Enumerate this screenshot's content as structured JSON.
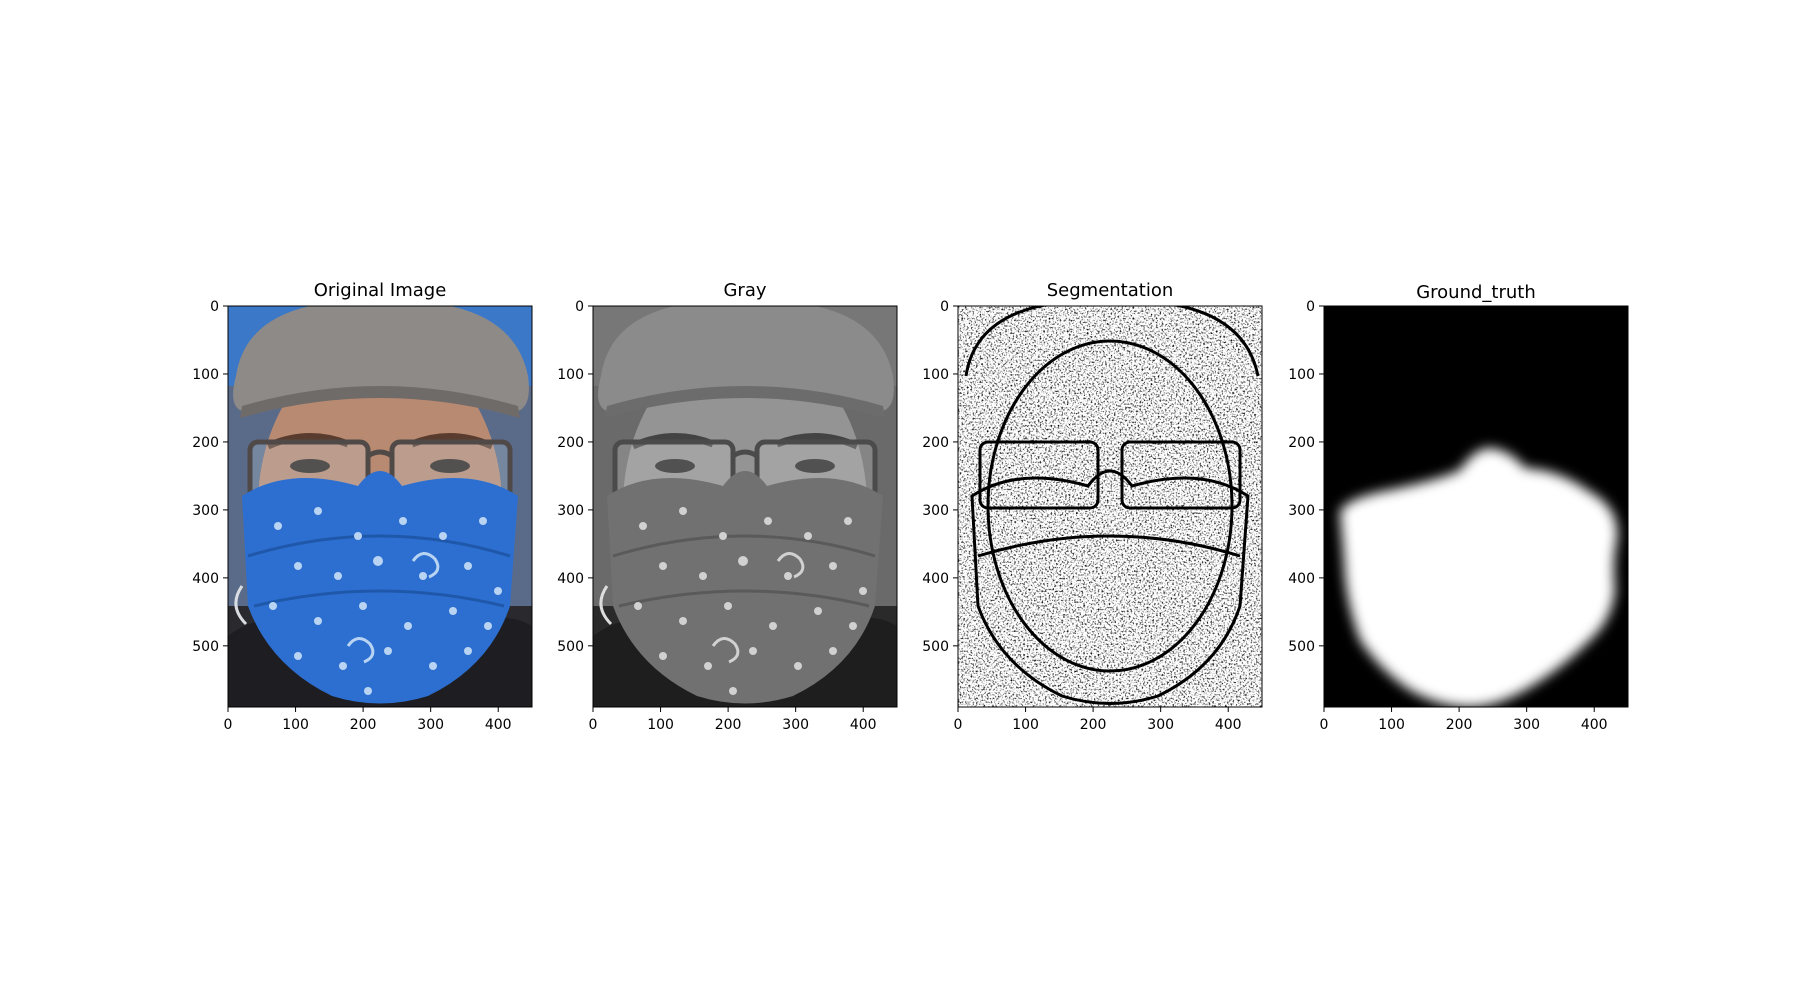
{
  "figure": {
    "panels": [
      {
        "id": "original",
        "title": "Original Image",
        "image_kind": "color-photo",
        "xticks": [
          0,
          100,
          200,
          300,
          400
        ],
        "yticks": [
          0,
          100,
          200,
          300,
          400,
          500
        ],
        "xlim": [
          0,
          450
        ],
        "ylim": [
          590,
          0
        ]
      },
      {
        "id": "gray",
        "title": "Gray",
        "image_kind": "grayscale-photo",
        "xticks": [
          0,
          100,
          200,
          300,
          400
        ],
        "yticks": [
          0,
          100,
          200,
          300,
          400,
          500
        ],
        "xlim": [
          0,
          450
        ],
        "ylim": [
          590,
          0
        ]
      },
      {
        "id": "segmentation",
        "title": "Segmentation",
        "image_kind": "edge-map",
        "xticks": [
          0,
          100,
          200,
          300,
          400
        ],
        "yticks": [
          0,
          100,
          200,
          300,
          400,
          500
        ],
        "xlim": [
          0,
          450
        ],
        "ylim": [
          590,
          0
        ]
      },
      {
        "id": "ground-truth",
        "title": "Ground_truth",
        "image_kind": "binary-mask",
        "xticks": [
          0,
          100,
          200,
          300,
          400
        ],
        "yticks": [
          0,
          100,
          200,
          300,
          400,
          500
        ],
        "xlim": [
          0,
          450
        ],
        "ylim": [
          590,
          0
        ]
      }
    ],
    "colors": {
      "mask_bg": "#000000",
      "mask_fg": "#ffffff",
      "mask_blue": "#2d6fd1",
      "cap_gray": "#8e8a88",
      "skin": "#b98a72"
    }
  }
}
